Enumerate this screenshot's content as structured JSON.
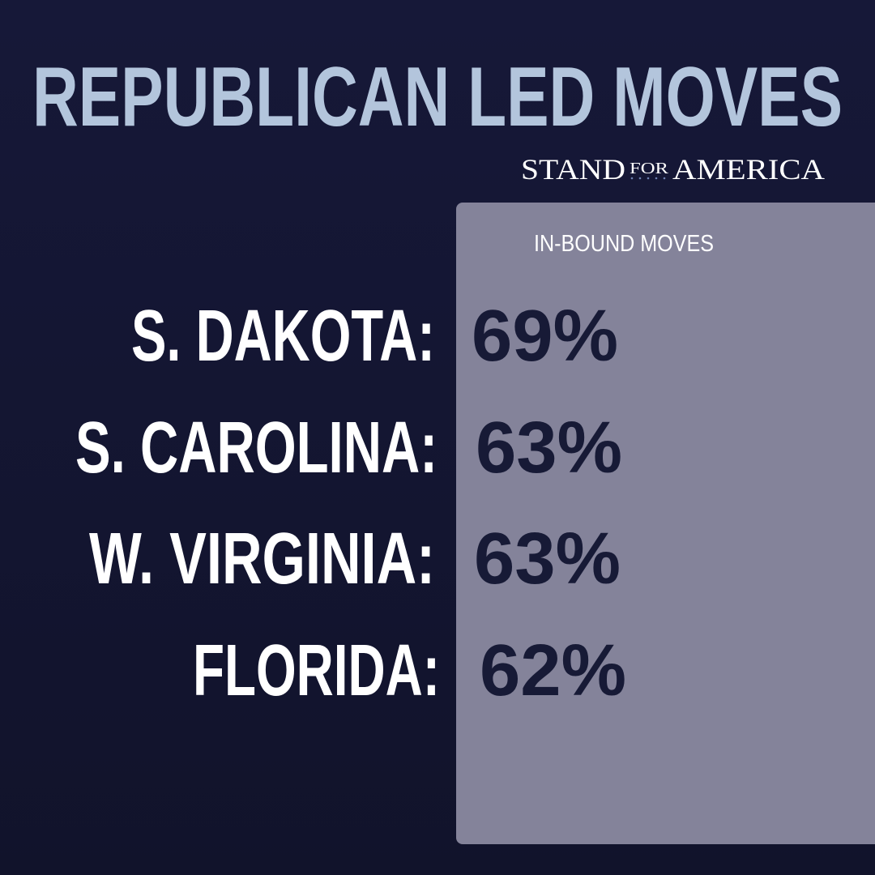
{
  "header": {
    "title": "REPUBLICAN LED MOVES",
    "brand": [
      "STAND",
      "FOR",
      "AMERICA"
    ]
  },
  "table": {
    "column_header": "IN-BOUND MOVES",
    "rows": [
      [
        "S. DAKOTA:",
        "69%"
      ],
      [
        "S. CAROLINA:",
        "63%"
      ],
      [
        "W. VIRGINIA:",
        "63%"
      ],
      [
        "FLORIDA:",
        "62%"
      ]
    ]
  }
}
